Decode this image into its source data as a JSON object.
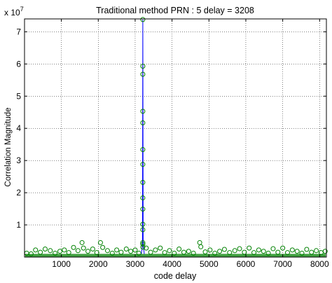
{
  "chart_data": {
    "type": "scatter",
    "title": "Traditional method PRN : 5 delay = 3208",
    "xlabel": "code delay",
    "ylabel": "Correlation Magnitude",
    "y_exponent_base": "x 10",
    "y_exponent_power": "7",
    "xlim": [
      1,
      8184
    ],
    "ylim": [
      0,
      7.4
    ],
    "y_unit_multiplier": 10000000,
    "grid": true,
    "x_ticks": [
      1000,
      2000,
      3000,
      4000,
      5000,
      6000,
      7000,
      8000
    ],
    "x_tick_labels": [
      "1000",
      "2000",
      "3000",
      "4000",
      "5000",
      "6000",
      "7000",
      "8000"
    ],
    "y_ticks": [
      1,
      2,
      3,
      4,
      5,
      6,
      7
    ],
    "y_tick_labels": [
      "1",
      "2",
      "3",
      "4",
      "5",
      "6",
      "7"
    ],
    "line_color": "#0000ff",
    "marker_color": "#008000",
    "peak": {
      "x": 3208,
      "y": 7.38
    },
    "peak_points": [
      {
        "x": 3208,
        "y": 7.38
      },
      {
        "x": 3208,
        "y": 5.93
      },
      {
        "x": 3208,
        "y": 5.68
      },
      {
        "x": 3208,
        "y": 4.53
      },
      {
        "x": 3208,
        "y": 4.17
      },
      {
        "x": 3208,
        "y": 3.34
      },
      {
        "x": 3208,
        "y": 2.88
      },
      {
        "x": 3208,
        "y": 2.32
      },
      {
        "x": 3208,
        "y": 1.84
      },
      {
        "x": 3208,
        "y": 1.49
      },
      {
        "x": 3208,
        "y": 1.02
      },
      {
        "x": 3208,
        "y": 0.85
      },
      {
        "x": 3208,
        "y": 0.45
      },
      {
        "x": 3208,
        "y": 0.4
      },
      {
        "x": 3208,
        "y": 0.31
      }
    ],
    "noise_floor_points": [
      {
        "x": 60,
        "y": 0.12
      },
      {
        "x": 180,
        "y": 0.1
      },
      {
        "x": 300,
        "y": 0.22
      },
      {
        "x": 430,
        "y": 0.15
      },
      {
        "x": 560,
        "y": 0.25
      },
      {
        "x": 700,
        "y": 0.2
      },
      {
        "x": 830,
        "y": 0.12
      },
      {
        "x": 960,
        "y": 0.18
      },
      {
        "x": 1080,
        "y": 0.22
      },
      {
        "x": 1200,
        "y": 0.14
      },
      {
        "x": 1330,
        "y": 0.3
      },
      {
        "x": 1450,
        "y": 0.2
      },
      {
        "x": 1560,
        "y": 0.45
      },
      {
        "x": 1600,
        "y": 0.28
      },
      {
        "x": 1720,
        "y": 0.18
      },
      {
        "x": 1850,
        "y": 0.25
      },
      {
        "x": 1960,
        "y": 0.14
      },
      {
        "x": 2060,
        "y": 0.45
      },
      {
        "x": 2120,
        "y": 0.3
      },
      {
        "x": 2250,
        "y": 0.2
      },
      {
        "x": 2380,
        "y": 0.12
      },
      {
        "x": 2500,
        "y": 0.22
      },
      {
        "x": 2620,
        "y": 0.15
      },
      {
        "x": 2760,
        "y": 0.25
      },
      {
        "x": 2880,
        "y": 0.18
      },
      {
        "x": 3000,
        "y": 0.22
      },
      {
        "x": 3100,
        "y": 0.12
      },
      {
        "x": 3300,
        "y": 0.28
      },
      {
        "x": 3420,
        "y": 0.15
      },
      {
        "x": 3550,
        "y": 0.22
      },
      {
        "x": 3680,
        "y": 0.28
      },
      {
        "x": 3800,
        "y": 0.14
      },
      {
        "x": 3930,
        "y": 0.2
      },
      {
        "x": 4060,
        "y": 0.12
      },
      {
        "x": 4190,
        "y": 0.25
      },
      {
        "x": 4320,
        "y": 0.15
      },
      {
        "x": 4450,
        "y": 0.18
      },
      {
        "x": 4580,
        "y": 0.12
      },
      {
        "x": 4750,
        "y": 0.45
      },
      {
        "x": 4780,
        "y": 0.32
      },
      {
        "x": 4900,
        "y": 0.16
      },
      {
        "x": 5030,
        "y": 0.22
      },
      {
        "x": 5160,
        "y": 0.12
      },
      {
        "x": 5290,
        "y": 0.18
      },
      {
        "x": 5420,
        "y": 0.24
      },
      {
        "x": 5560,
        "y": 0.14
      },
      {
        "x": 5700,
        "y": 0.2
      },
      {
        "x": 5830,
        "y": 0.26
      },
      {
        "x": 5960,
        "y": 0.15
      },
      {
        "x": 6090,
        "y": 0.28
      },
      {
        "x": 6220,
        "y": 0.14
      },
      {
        "x": 6350,
        "y": 0.22
      },
      {
        "x": 6480,
        "y": 0.18
      },
      {
        "x": 6610,
        "y": 0.12
      },
      {
        "x": 6740,
        "y": 0.26
      },
      {
        "x": 6870,
        "y": 0.15
      },
      {
        "x": 7000,
        "y": 0.28
      },
      {
        "x": 7130,
        "y": 0.14
      },
      {
        "x": 7260,
        "y": 0.22
      },
      {
        "x": 7390,
        "y": 0.18
      },
      {
        "x": 7520,
        "y": 0.12
      },
      {
        "x": 7650,
        "y": 0.24
      },
      {
        "x": 7780,
        "y": 0.15
      },
      {
        "x": 7910,
        "y": 0.2
      },
      {
        "x": 8040,
        "y": 0.14
      },
      {
        "x": 8150,
        "y": 0.18
      }
    ]
  }
}
